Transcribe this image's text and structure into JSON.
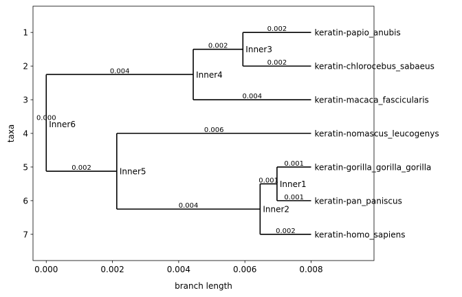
{
  "chart_data": {
    "type": "tree",
    "title": "",
    "xlabel": "branch length",
    "ylabel": "taxa",
    "xlim": [
      -0.0004,
      0.0099
    ],
    "ylim": [
      7.78,
      0.22
    ],
    "x_ticks": [
      0.0,
      0.002,
      0.004,
      0.006,
      0.008
    ],
    "x_tick_labels": [
      "0.000",
      "0.002",
      "0.004",
      "0.006",
      "0.008"
    ],
    "y_ticks": [
      1,
      2,
      3,
      4,
      5,
      6,
      7
    ],
    "y_tick_labels": [
      "1",
      "2",
      "3",
      "4",
      "5",
      "6",
      "7"
    ],
    "grid": false,
    "nodes": [
      {
        "id": "Inner6",
        "label": "Inner6",
        "x": 0.0,
        "y": 2.25,
        "y_top": 2.25,
        "y_bottom": 5.125
      },
      {
        "id": "Inner4",
        "label": "Inner4",
        "x": 0.00444,
        "y": 2.25,
        "y_top": 1.5,
        "y_bottom": 3.0
      },
      {
        "id": "Inner3",
        "label": "Inner3",
        "x": 0.00594,
        "y": 1.5,
        "y_top": 1.0,
        "y_bottom": 2.0
      },
      {
        "id": "Inner5",
        "label": "Inner5",
        "x": 0.00213,
        "y": 5.125,
        "y_top": 4.0,
        "y_bottom": 6.25
      },
      {
        "id": "Inner2",
        "label": "Inner2",
        "x": 0.00646,
        "y": 6.25,
        "y_top": 5.5,
        "y_bottom": 7.0
      },
      {
        "id": "Inner1",
        "label": "Inner1",
        "x": 0.00697,
        "y": 5.5,
        "y_top": 5.0,
        "y_bottom": 6.0
      }
    ],
    "leaves": [
      {
        "label": "keratin-papio_anubis",
        "y": 1,
        "x": 0.008
      },
      {
        "label": "keratin-chlorocebus_sabaeus",
        "y": 2,
        "x": 0.008
      },
      {
        "label": "keratin-macaca_fascicularis",
        "y": 3,
        "x": 0.008
      },
      {
        "label": "keratin-nomascus_leucogenys",
        "y": 4,
        "x": 0.008
      },
      {
        "label": "keratin-gorilla_gorilla_gorilla",
        "y": 5,
        "x": 0.008
      },
      {
        "label": "keratin-pan_paniscus",
        "y": 6,
        "x": 0.008
      },
      {
        "label": "keratin-homo_sapiens",
        "y": 7,
        "x": 0.008
      }
    ],
    "branches": [
      {
        "x1": 0.0,
        "x2": 0.00444,
        "y": 2.25,
        "label": "0.004"
      },
      {
        "x1": 0.00444,
        "x2": 0.00594,
        "y": 1.5,
        "label": "0.002"
      },
      {
        "x1": 0.00594,
        "x2": 0.008,
        "y": 1,
        "label": "0.002"
      },
      {
        "x1": 0.00594,
        "x2": 0.008,
        "y": 2,
        "label": "0.002"
      },
      {
        "x1": 0.00444,
        "x2": 0.008,
        "y": 3,
        "label": "0.004"
      },
      {
        "x1": 0.0,
        "x2": 0.00213,
        "y": 5.125,
        "label": "0.002"
      },
      {
        "x1": 0.00213,
        "x2": 0.008,
        "y": 4,
        "label": "0.006"
      },
      {
        "x1": 0.00213,
        "x2": 0.00646,
        "y": 6.25,
        "label": "0.004"
      },
      {
        "x1": 0.00646,
        "x2": 0.00697,
        "y": 5.5,
        "label": "0.001"
      },
      {
        "x1": 0.00697,
        "x2": 0.008,
        "y": 5,
        "label": "0.001"
      },
      {
        "x1": 0.00697,
        "x2": 0.008,
        "y": 6,
        "label": "0.001"
      },
      {
        "x1": 0.00646,
        "x2": 0.008,
        "y": 7,
        "label": "0.002"
      }
    ],
    "root_branch_label": "0.000"
  }
}
